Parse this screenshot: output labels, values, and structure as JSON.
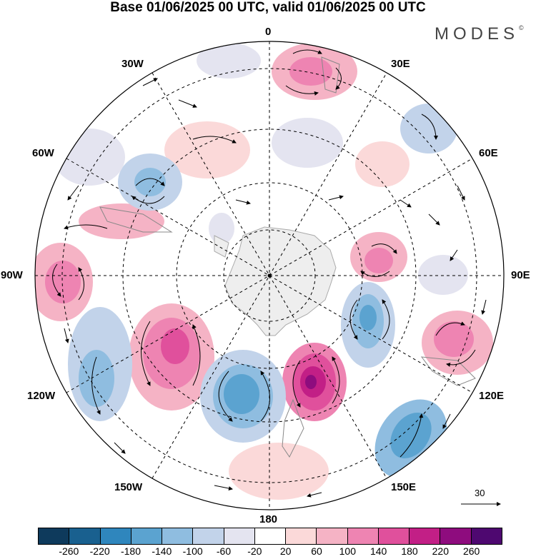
{
  "title": "Base 01/06/2025 00 UTC, valid 01/06/2025 00 UTC",
  "brand": "MODES",
  "brand_mark": "©",
  "longitude_labels": {
    "lon_0": "0",
    "lon_30e": "30E",
    "lon_60e": "60E",
    "lon_90e": "90E",
    "lon_120e": "120E",
    "lon_150e": "150E",
    "lon_180": "180",
    "lon_150w": "150W",
    "lon_120w": "120W",
    "lon_90w": "90W",
    "lon_60w": "60W",
    "lon_30w": "30W"
  },
  "vector_reference": "30",
  "colorbar": {
    "colors": [
      "#0e3a5c",
      "#19608f",
      "#2f86bd",
      "#5ba3d0",
      "#8fbde0",
      "#c2d3ea",
      "#e4e4f0",
      "#ffffff",
      "#fbd9d9",
      "#f5b3c5",
      "#ee84b2",
      "#e0509c",
      "#c21f86",
      "#8e0c7e",
      "#4e0870"
    ],
    "tick_labels": [
      "-260",
      "-220",
      "-180",
      "-140",
      "-100",
      "-60",
      "-20",
      "20",
      "60",
      "100",
      "140",
      "180",
      "220",
      "260"
    ]
  },
  "map": {
    "projection": "south-polar-stereographic",
    "land_color": "#eeeeee",
    "graticule_color": "#000000"
  }
}
